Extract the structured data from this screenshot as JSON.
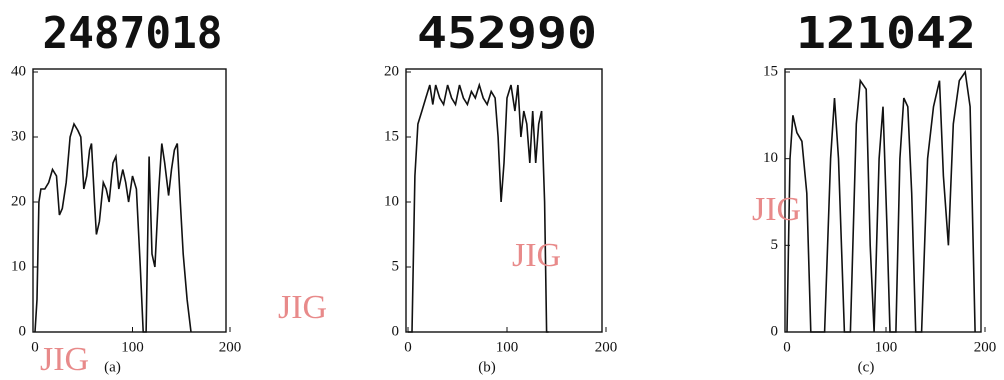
{
  "chart_data": [
    {
      "type": "line",
      "title": "2487018",
      "caption": "(a)",
      "color": "#111111",
      "xlim": [
        0,
        200
      ],
      "xticks": [
        0,
        100,
        200
      ],
      "ylim": [
        0,
        40
      ],
      "yticks": [
        0,
        10,
        20,
        30,
        40
      ],
      "x": [
        0,
        2,
        4,
        6,
        10,
        14,
        18,
        22,
        25,
        28,
        32,
        36,
        40,
        44,
        47,
        50,
        53,
        56,
        58,
        61,
        63,
        66,
        70,
        73,
        76,
        80,
        83,
        86,
        90,
        93,
        96,
        100,
        104,
        108,
        111,
        114,
        117,
        120,
        123,
        127,
        130,
        133,
        137,
        140,
        143,
        146,
        149,
        152,
        156,
        160
      ],
      "values": [
        0,
        5,
        20,
        22,
        22,
        23,
        25,
        24,
        18,
        19,
        23,
        30,
        32,
        31,
        30,
        22,
        24,
        28,
        29,
        20,
        15,
        17,
        23,
        22,
        20,
        26,
        27,
        22,
        25,
        23,
        20,
        24,
        22,
        10,
        0,
        0,
        27,
        12,
        10,
        22,
        29,
        26,
        21,
        25,
        28,
        29,
        20,
        12,
        5,
        0
      ]
    },
    {
      "type": "line",
      "title": "452990",
      "caption": "(b)",
      "color": "#111111",
      "xlim": [
        0,
        200
      ],
      "xticks": [
        0,
        100,
        200
      ],
      "ylim": [
        0,
        20
      ],
      "yticks": [
        0,
        5,
        10,
        15,
        20
      ],
      "x": [
        0,
        4,
        7,
        10,
        14,
        18,
        22,
        25,
        28,
        32,
        36,
        40,
        44,
        48,
        52,
        56,
        60,
        64,
        68,
        72,
        76,
        80,
        84,
        88,
        91,
        94,
        97,
        100,
        104,
        108,
        111,
        114,
        117,
        120,
        123,
        126,
        129,
        132,
        135,
        138,
        140,
        142
      ],
      "values": [
        0,
        0,
        12,
        16,
        17,
        18,
        19,
        17.5,
        19,
        18,
        17.5,
        19,
        18,
        17.5,
        19,
        18,
        17.5,
        18.5,
        18,
        19,
        18,
        17.5,
        18.5,
        18,
        15,
        10,
        13,
        18,
        19,
        17,
        19,
        15,
        17,
        16,
        13,
        17,
        13,
        16,
        17,
        10,
        0,
        0
      ]
    },
    {
      "type": "line",
      "title": "121042",
      "caption": "(c)",
      "color": "#111111",
      "xlim": [
        0,
        200
      ],
      "xticks": [
        0,
        100,
        200
      ],
      "ylim": [
        0,
        15
      ],
      "yticks": [
        0,
        5,
        10,
        15
      ],
      "x": [
        0,
        3,
        6,
        10,
        15,
        20,
        24,
        30,
        38,
        44,
        48,
        52,
        58,
        64,
        70,
        74,
        80,
        84,
        88,
        93,
        97,
        101,
        104,
        110,
        114,
        118,
        122,
        126,
        130,
        136,
        142,
        148,
        154,
        158,
        163,
        168,
        174,
        180,
        185,
        190
      ],
      "values": [
        0,
        10,
        12.5,
        11.5,
        11,
        8,
        0,
        0,
        0,
        10,
        13.5,
        10,
        0,
        0,
        12,
        14.5,
        14,
        5,
        0,
        10,
        13,
        6,
        0,
        0,
        10,
        13.5,
        13,
        8,
        0,
        0,
        10,
        13,
        14.5,
        9,
        5,
        12,
        14.5,
        15,
        13,
        0
      ]
    }
  ],
  "watermarks": [
    "JIG",
    "JIG",
    "JIG",
    "JIG"
  ]
}
